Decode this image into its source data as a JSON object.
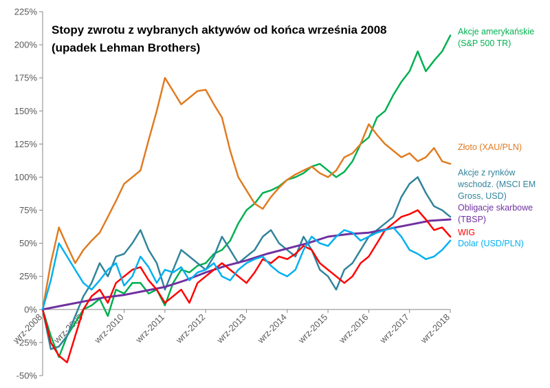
{
  "chart_data": {
    "type": "line",
    "title_lines": [
      "Stopy zwrotu z wybranych aktywów od końca września 2008",
      "(upadek Lehman Brothers)"
    ],
    "xlabel": "",
    "ylabel": "",
    "x_unit": "years since end of September 2008",
    "xlim": [
      0,
      10
    ],
    "ylim": [
      -50,
      225
    ],
    "y_ticks": [
      -50,
      -25,
      0,
      25,
      50,
      75,
      100,
      125,
      150,
      175,
      200,
      225
    ],
    "y_tick_labels": [
      "-50%",
      "-25%",
      "0%",
      "25%",
      "50%",
      "75%",
      "100%",
      "125%",
      "150%",
      "175%",
      "200%",
      "225%"
    ],
    "x_ticks": [
      0,
      1,
      2,
      3,
      4,
      5,
      6,
      7,
      8,
      9,
      10
    ],
    "x_tick_labels": [
      "wrz-2008",
      "wrz-2009",
      "wrz-2010",
      "wrz-2011",
      "wrz-2012",
      "wrz-2013",
      "wrz-2014",
      "wrz-2015",
      "wrz-2016",
      "wrz-2017",
      "wrz-2018"
    ],
    "grid": false,
    "legend": "inline-right",
    "series": [
      {
        "name_lines": [
          "Akcje amerykańskie",
          "(S&P 500 TR)"
        ],
        "color": "#00b050",
        "x": [
          0,
          0.2,
          0.4,
          0.6,
          0.8,
          1.0,
          1.2,
          1.4,
          1.6,
          1.8,
          2.0,
          2.2,
          2.4,
          2.6,
          2.8,
          3.0,
          3.2,
          3.4,
          3.6,
          3.8,
          4.0,
          4.2,
          4.4,
          4.6,
          4.8,
          5.0,
          5.2,
          5.4,
          5.6,
          5.8,
          6.0,
          6.2,
          6.4,
          6.6,
          6.8,
          7.0,
          7.2,
          7.4,
          7.6,
          7.8,
          8.0,
          8.2,
          8.4,
          8.6,
          8.8,
          9.0,
          9.2,
          9.4,
          9.6,
          9.8,
          10.0
        ],
        "y": [
          0,
          -20,
          -36,
          -20,
          -10,
          0,
          3,
          8,
          -5,
          15,
          12,
          20,
          20,
          12,
          15,
          3,
          20,
          30,
          28,
          33,
          35,
          42,
          45,
          52,
          65,
          75,
          80,
          88,
          90,
          93,
          98,
          100,
          103,
          108,
          110,
          105,
          100,
          104,
          112,
          125,
          130,
          145,
          150,
          162,
          172,
          180,
          195,
          180,
          188,
          195,
          207
        ]
      },
      {
        "name_lines": [
          "Złoto (XAU/PLN)"
        ],
        "color": "#e07b20",
        "x": [
          0,
          0.2,
          0.4,
          0.6,
          0.8,
          1.0,
          1.2,
          1.4,
          1.6,
          1.8,
          2.0,
          2.2,
          2.4,
          2.6,
          2.8,
          3.0,
          3.2,
          3.4,
          3.6,
          3.8,
          4.0,
          4.2,
          4.4,
          4.6,
          4.8,
          5.0,
          5.2,
          5.4,
          5.6,
          5.8,
          6.0,
          6.2,
          6.4,
          6.6,
          6.8,
          7.0,
          7.2,
          7.4,
          7.6,
          7.8,
          8.0,
          8.2,
          8.4,
          8.6,
          8.8,
          9.0,
          9.2,
          9.4,
          9.6,
          9.8,
          10.0
        ],
        "y": [
          0,
          35,
          62,
          48,
          35,
          45,
          52,
          58,
          70,
          82,
          95,
          100,
          105,
          128,
          150,
          175,
          165,
          155,
          160,
          165,
          166,
          155,
          145,
          120,
          100,
          90,
          80,
          76,
          85,
          92,
          98,
          102,
          105,
          108,
          103,
          100,
          105,
          115,
          118,
          125,
          140,
          132,
          125,
          120,
          115,
          118,
          112,
          115,
          122,
          112,
          110
        ]
      },
      {
        "name_lines": [
          "Akcje z rynków",
          "wschodz. (MSCI EM",
          "Gross, USD)"
        ],
        "color": "#31849b",
        "x": [
          0,
          0.2,
          0.4,
          0.6,
          0.8,
          1.0,
          1.2,
          1.4,
          1.6,
          1.8,
          2.0,
          2.2,
          2.4,
          2.6,
          2.8,
          3.0,
          3.2,
          3.4,
          3.6,
          3.8,
          4.0,
          4.2,
          4.4,
          4.6,
          4.8,
          5.0,
          5.2,
          5.4,
          5.6,
          5.8,
          6.0,
          6.2,
          6.4,
          6.6,
          6.8,
          7.0,
          7.2,
          7.4,
          7.6,
          7.8,
          8.0,
          8.2,
          8.4,
          8.6,
          8.8,
          9.0,
          9.2,
          9.4,
          9.6,
          9.8,
          10.0
        ],
        "y": [
          0,
          -30,
          -28,
          -20,
          -5,
          10,
          20,
          35,
          25,
          40,
          42,
          50,
          60,
          45,
          35,
          15,
          30,
          45,
          40,
          35,
          30,
          40,
          55,
          45,
          35,
          40,
          45,
          55,
          60,
          50,
          45,
          40,
          55,
          45,
          30,
          25,
          15,
          30,
          35,
          45,
          55,
          60,
          65,
          70,
          85,
          95,
          100,
          88,
          78,
          75,
          70
        ]
      },
      {
        "name_lines": [
          "Obligacje skarbowe",
          "(TBSP)"
        ],
        "color": "#7030a0",
        "x": [
          0,
          0.5,
          1.0,
          1.5,
          2.0,
          2.5,
          3.0,
          3.5,
          4.0,
          4.5,
          5.0,
          5.5,
          6.0,
          6.5,
          7.0,
          7.5,
          8.0,
          8.5,
          9.0,
          9.5,
          10.0
        ],
        "y": [
          0,
          3,
          6,
          9,
          11,
          14,
          17,
          22,
          28,
          33,
          37,
          42,
          46,
          50,
          55,
          57,
          58,
          61,
          64,
          67,
          68
        ]
      },
      {
        "name_lines": [
          "WIG"
        ],
        "color": "#ff0000",
        "x": [
          0,
          0.2,
          0.4,
          0.6,
          0.8,
          1.0,
          1.2,
          1.4,
          1.6,
          1.8,
          2.0,
          2.2,
          2.4,
          2.6,
          2.8,
          3.0,
          3.2,
          3.4,
          3.6,
          3.8,
          4.0,
          4.2,
          4.4,
          4.6,
          4.8,
          5.0,
          5.2,
          5.4,
          5.6,
          5.8,
          6.0,
          6.2,
          6.4,
          6.6,
          6.8,
          7.0,
          7.2,
          7.4,
          7.6,
          7.8,
          8.0,
          8.2,
          8.4,
          8.6,
          8.8,
          9.0,
          9.2,
          9.4,
          9.6,
          9.8,
          10.0
        ],
        "y": [
          0,
          -25,
          -35,
          -40,
          -20,
          0,
          10,
          15,
          5,
          20,
          25,
          30,
          32,
          22,
          15,
          5,
          10,
          15,
          5,
          20,
          25,
          30,
          35,
          30,
          25,
          20,
          28,
          38,
          35,
          40,
          38,
          42,
          48,
          45,
          35,
          30,
          25,
          20,
          25,
          35,
          40,
          50,
          60,
          65,
          70,
          72,
          75,
          68,
          60,
          62,
          55
        ]
      },
      {
        "name_lines": [
          "Dolar (USD/PLN)"
        ],
        "color": "#00b0f0",
        "x": [
          0,
          0.2,
          0.4,
          0.6,
          0.8,
          1.0,
          1.2,
          1.4,
          1.6,
          1.8,
          2.0,
          2.2,
          2.4,
          2.6,
          2.8,
          3.0,
          3.2,
          3.4,
          3.6,
          3.8,
          4.0,
          4.2,
          4.4,
          4.6,
          4.8,
          5.0,
          5.2,
          5.4,
          5.6,
          5.8,
          6.0,
          6.2,
          6.4,
          6.6,
          6.8,
          7.0,
          7.2,
          7.4,
          7.6,
          7.8,
          8.0,
          8.2,
          8.4,
          8.6,
          8.8,
          9.0,
          9.2,
          9.4,
          9.6,
          9.8,
          10.0
        ],
        "y": [
          0,
          22,
          50,
          40,
          30,
          20,
          15,
          22,
          30,
          35,
          18,
          25,
          40,
          32,
          20,
          30,
          28,
          32,
          22,
          28,
          30,
          35,
          25,
          22,
          30,
          35,
          38,
          40,
          33,
          28,
          25,
          30,
          45,
          55,
          50,
          48,
          55,
          60,
          58,
          52,
          55,
          58,
          60,
          62,
          55,
          45,
          42,
          38,
          40,
          45,
          52
        ]
      }
    ]
  }
}
